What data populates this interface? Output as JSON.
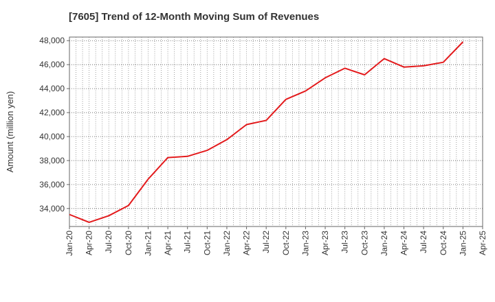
{
  "chart_data": {
    "type": "line",
    "title": "[7605]  Trend of 12-Month Moving Sum of Revenues",
    "ylabel": "Amount (million yen)",
    "xlabel": "",
    "ylim": [
      32500,
      48300
    ],
    "yticks": [
      34000,
      36000,
      38000,
      40000,
      42000,
      44000,
      46000,
      48000
    ],
    "ytick_labels": [
      "34,000",
      "36,000",
      "38,000",
      "40,000",
      "42,000",
      "44,000",
      "46,000",
      "48,000"
    ],
    "x_ticks": [
      "Jan-20",
      "Apr-20",
      "Jul-20",
      "Oct-20",
      "Jan-21",
      "Apr-21",
      "Jul-21",
      "Oct-21",
      "Jan-22",
      "Apr-22",
      "Jul-22",
      "Oct-22",
      "Jan-23",
      "Apr-23",
      "Jul-23",
      "Oct-23",
      "Jan-24",
      "Apr-24",
      "Jul-24",
      "Oct-24",
      "Jan-25",
      "Apr-25"
    ],
    "grid": true,
    "series": [
      {
        "color": "#e31a1c",
        "x": [
          "Jan-20",
          "Apr-20",
          "Jul-20",
          "Oct-20",
          "Jan-21",
          "Apr-21",
          "Jul-21",
          "Oct-21",
          "Jan-22",
          "Apr-22",
          "Jul-22",
          "Oct-22",
          "Jan-23",
          "Apr-23",
          "Jul-23",
          "Oct-23",
          "Jan-24",
          "Apr-24",
          "Jul-24",
          "Oct-24",
          "Jan-25"
        ],
        "values": [
          33500,
          32850,
          33400,
          34250,
          36450,
          38250,
          38350,
          38850,
          39750,
          41000,
          41350,
          43100,
          43800,
          44900,
          45700,
          45150,
          46500,
          45800,
          45900,
          46200,
          47900
        ]
      }
    ]
  }
}
